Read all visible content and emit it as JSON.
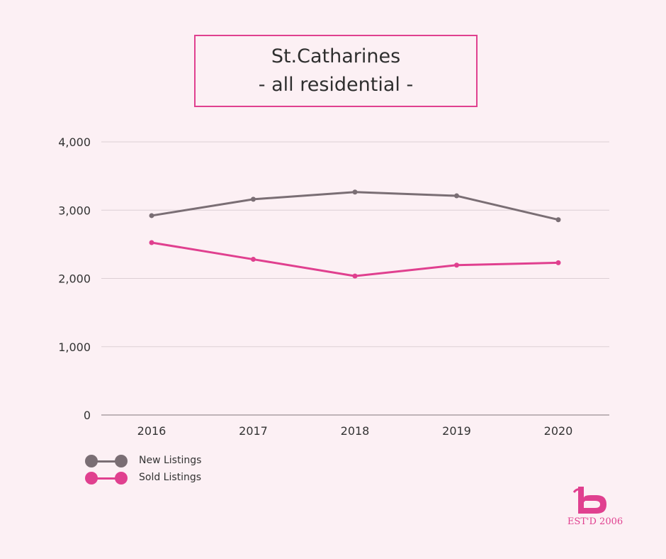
{
  "title": {
    "line1": "St.Catharines",
    "line2": "- all residential -"
  },
  "chart_data": {
    "type": "line",
    "categories": [
      "2016",
      "2017",
      "2018",
      "2019",
      "2020"
    ],
    "series": [
      {
        "name": "New Listings",
        "values": [
          2920,
          3160,
          3265,
          3210,
          2860
        ],
        "color": "#7a6e74"
      },
      {
        "name": "Sold Listings",
        "values": [
          2525,
          2280,
          2035,
          2195,
          2230
        ],
        "color": "#e0408f"
      }
    ],
    "ylim": [
      0,
      4000
    ],
    "yticks": [
      0,
      1000,
      2000,
      3000,
      4000
    ],
    "ytick_labels": [
      "0",
      "1,000",
      "2,000",
      "3,000",
      "4,000"
    ],
    "grid": true,
    "legend_position": "bottom-left"
  },
  "logo": {
    "icon": "b-logo-icon",
    "est_text": "EST'D 2006",
    "color": "#e0408f"
  }
}
